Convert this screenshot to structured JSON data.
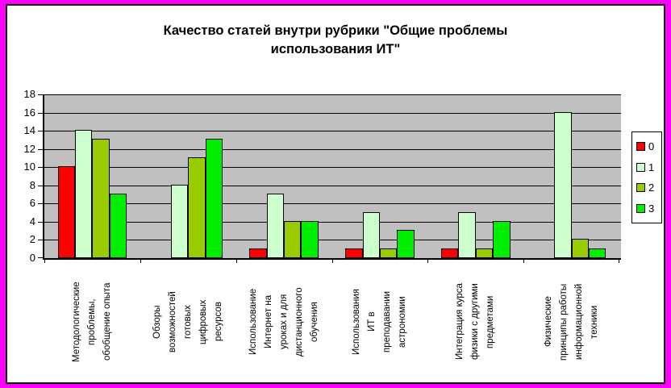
{
  "title": "Качество статей внутри рубрики \"Общие проблемы\nиспользования ИТ\"",
  "frame": {
    "border_color": "#FF00FF",
    "inner_border_color": "#000000",
    "background": "#FFFFFF"
  },
  "chart_data": {
    "type": "bar",
    "title": "Качество статей внутри рубрики \"Общие проблемы использования ИТ\"",
    "xlabel": "",
    "ylabel": "",
    "ylim": [
      0,
      18
    ],
    "yticks": [
      0,
      2,
      4,
      6,
      8,
      10,
      12,
      14,
      16,
      18
    ],
    "grid": true,
    "plot_background": "#C0C0C0",
    "gridline_color": "#000000",
    "legend_position": "right",
    "categories": [
      "Методологические\nпроблемы,\nобобщение опыта",
      "Обзоры\nвозможностей\nготовых\nцифровых\nресурсов",
      "Использование\nИнтернет на\nуроках и для\nдистанционного\nобучения",
      "Использования\nИТ в\nпреподавании\nастрономии",
      "Интеграция курса\nфизики с другими\nпредметами",
      "Физические\nпринципы работы\nинформационной\nтехники"
    ],
    "series": [
      {
        "name": "0",
        "color": "#FF0000",
        "values": [
          10,
          0,
          1,
          1,
          1,
          0
        ]
      },
      {
        "name": "1",
        "color": "#CCFFCC",
        "values": [
          14,
          8,
          7,
          5,
          5,
          16
        ]
      },
      {
        "name": "2",
        "color": "#99CC00",
        "values": [
          13,
          11,
          4,
          1,
          1,
          2
        ]
      },
      {
        "name": "3",
        "color": "#00EE00",
        "values": [
          7,
          13,
          4,
          3,
          4,
          1
        ]
      }
    ]
  }
}
